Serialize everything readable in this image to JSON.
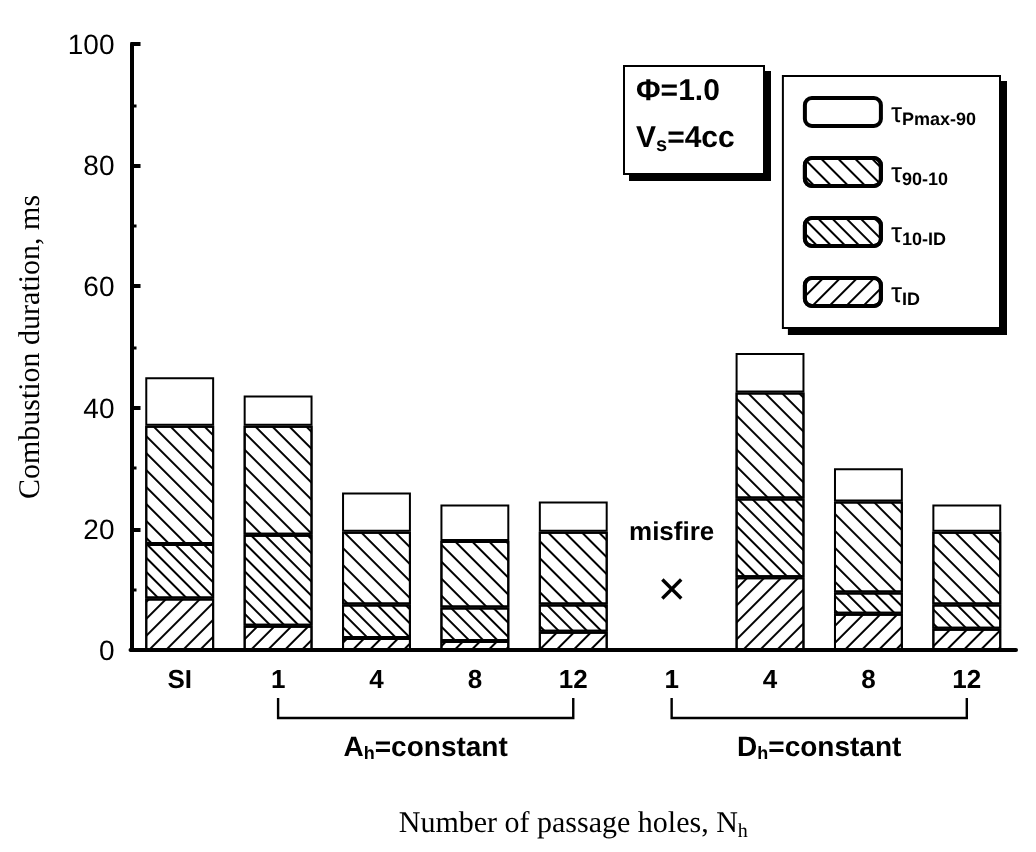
{
  "chart_data": {
    "type": "bar",
    "stacked": true,
    "xlabel": "Number of passage holes, N$_{h}$",
    "ylabel": "Combustion duration, ms",
    "categories": [
      "SI",
      "1",
      "4",
      "8",
      "12",
      "1",
      "4",
      "8",
      "12"
    ],
    "series": [
      {
        "name": "τ$_{ID}$",
        "color": "#ffffff",
        "values": [
          8.5,
          4,
          2,
          1.5,
          3,
          null,
          12,
          6,
          3.5
        ]
      },
      {
        "name": "τ$_{10-ID}$",
        "color": "#ffffff",
        "values": [
          9,
          15,
          5.5,
          5.5,
          4.5,
          null,
          13,
          3.5,
          4
        ]
      },
      {
        "name": "τ$_{90-10}$",
        "color": "#ffffff",
        "values": [
          19.5,
          18,
          12,
          11,
          12,
          null,
          17.5,
          15,
          12
        ]
      },
      {
        "name": "τ$_{Pmax-90}$",
        "color": "#ffffff",
        "values": [
          8,
          5,
          6.5,
          6,
          5,
          null,
          6.5,
          5.5,
          4.5
        ]
      }
    ],
    "ylim": [
      0,
      100
    ],
    "yticks": [
      0,
      20,
      40,
      60,
      80,
      100
    ],
    "legend": "top right",
    "grid": false,
    "annotations": [
      "Φ=1.0",
      "V$_{s}$=4cc",
      "misfire",
      "×",
      "A$_{h}$=constant",
      "D$_{h}$=constant"
    ]
  }
}
